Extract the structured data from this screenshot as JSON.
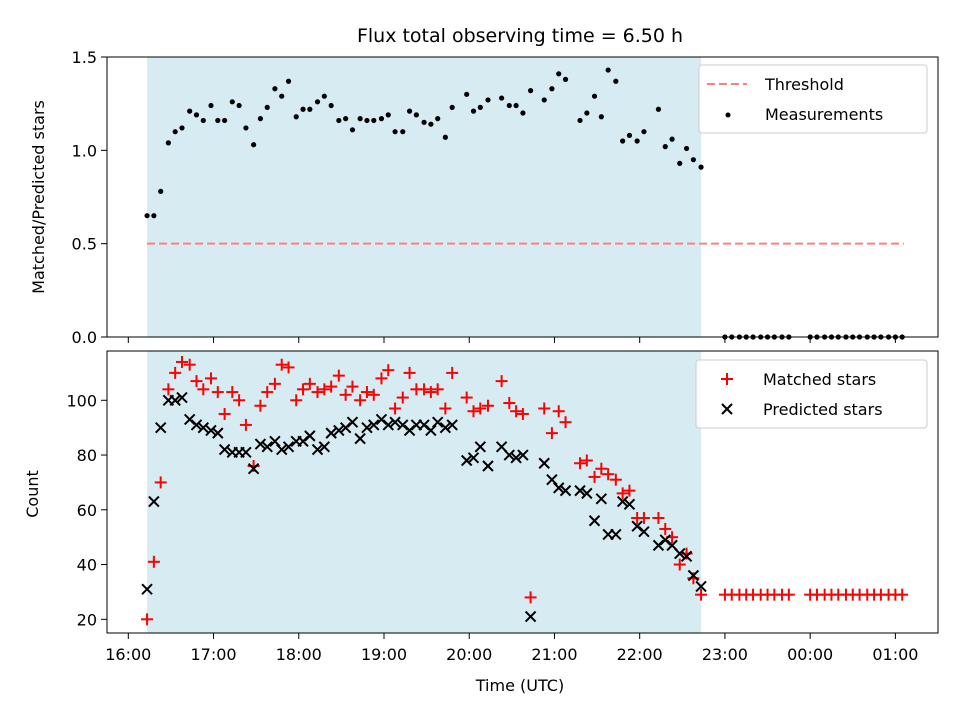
{
  "chart_data": [
    {
      "type": "scatter",
      "title": "Flux total observing time = 6.50 h",
      "ylabel": "Matched/Predicted stars",
      "ylim": [
        0,
        1.5
      ],
      "yticks": [
        0.0,
        0.5,
        1.0,
        1.5
      ],
      "ytick_labels": [
        "0.0",
        "0.5",
        "1.0",
        "1.5"
      ],
      "xlim_hours": [
        15.75,
        25.5
      ],
      "legend_position": "top-right",
      "shaded_region_hours": [
        16.22,
        22.72
      ],
      "shade_color": "#add8e6",
      "threshold": {
        "name": "Threshold",
        "value": 0.5,
        "x_hours": [
          16.22,
          25.1
        ],
        "color": "#ff7f7f"
      },
      "series": [
        {
          "name": "Measurements",
          "color": "#000000",
          "x_hours": [
            16.22,
            16.3,
            16.38,
            16.47,
            16.55,
            16.63,
            16.72,
            16.8,
            16.88,
            16.97,
            17.05,
            17.13,
            17.22,
            17.3,
            17.38,
            17.47,
            17.55,
            17.63,
            17.72,
            17.8,
            17.88,
            17.97,
            18.05,
            18.13,
            18.22,
            18.3,
            18.38,
            18.47,
            18.55,
            18.63,
            18.72,
            18.8,
            18.88,
            18.97,
            19.05,
            19.13,
            19.22,
            19.3,
            19.38,
            19.47,
            19.55,
            19.63,
            19.72,
            19.8,
            19.97,
            20.05,
            20.13,
            20.22,
            20.38,
            20.47,
            20.55,
            20.63,
            20.72,
            20.88,
            20.97,
            21.05,
            21.13,
            21.3,
            21.38,
            21.47,
            21.55,
            21.63,
            21.72,
            21.8,
            21.88,
            21.97,
            22.05,
            22.22,
            22.3,
            22.38,
            22.47,
            22.55,
            22.63,
            22.72,
            23.0,
            23.08,
            23.17,
            23.25,
            23.33,
            23.42,
            23.5,
            23.58,
            23.67,
            23.75,
            24.0,
            24.08,
            24.17,
            24.25,
            24.33,
            24.42,
            24.5,
            24.58,
            24.67,
            24.75,
            24.83,
            24.92,
            25.0,
            25.08
          ],
          "y": [
            0.65,
            0.65,
            0.78,
            1.04,
            1.1,
            1.12,
            1.21,
            1.19,
            1.16,
            1.24,
            1.16,
            1.16,
            1.26,
            1.24,
            1.12,
            1.03,
            1.17,
            1.23,
            1.33,
            1.29,
            1.37,
            1.18,
            1.22,
            1.22,
            1.26,
            1.29,
            1.24,
            1.16,
            1.17,
            1.11,
            1.17,
            1.16,
            1.16,
            1.17,
            1.19,
            1.1,
            1.1,
            1.21,
            1.19,
            1.15,
            1.14,
            1.17,
            1.07,
            1.23,
            1.3,
            1.21,
            1.23,
            1.27,
            1.28,
            1.24,
            1.24,
            1.2,
            1.32,
            1.27,
            1.33,
            1.41,
            1.38,
            1.16,
            1.2,
            1.29,
            1.18,
            1.43,
            1.37,
            1.05,
            1.08,
            1.05,
            1.1,
            1.22,
            1.02,
            1.06,
            0.93,
            1.01,
            0.95,
            0.91,
            0,
            0,
            0,
            0,
            0,
            0,
            0,
            0,
            0,
            0,
            0,
            0,
            0,
            0,
            0,
            0,
            0,
            0,
            0,
            0,
            0,
            0,
            0,
            0
          ]
        }
      ]
    },
    {
      "type": "scatter",
      "xlabel": "Time (UTC)",
      "ylabel": "Count",
      "ylim": [
        15,
        118
      ],
      "yticks": [
        20,
        40,
        60,
        80,
        100
      ],
      "xlim_hours": [
        15.75,
        25.5
      ],
      "xticks_hours": [
        16,
        17,
        18,
        19,
        20,
        21,
        22,
        23,
        24,
        25
      ],
      "xtick_labels": [
        "16:00",
        "17:00",
        "18:00",
        "19:00",
        "20:00",
        "21:00",
        "22:00",
        "23:00",
        "00:00",
        "01:00"
      ],
      "legend_position": "top-right",
      "shaded_region_hours": [
        16.22,
        22.72
      ],
      "series": [
        {
          "name": "Matched stars",
          "marker": "+",
          "color": "#ff0000",
          "x_hours": [
            16.22,
            16.3,
            16.38,
            16.47,
            16.55,
            16.63,
            16.72,
            16.8,
            16.88,
            16.97,
            17.05,
            17.13,
            17.22,
            17.3,
            17.38,
            17.47,
            17.55,
            17.63,
            17.72,
            17.8,
            17.88,
            17.97,
            18.05,
            18.13,
            18.22,
            18.3,
            18.38,
            18.47,
            18.55,
            18.63,
            18.72,
            18.8,
            18.88,
            18.97,
            19.05,
            19.13,
            19.22,
            19.3,
            19.38,
            19.47,
            19.55,
            19.63,
            19.72,
            19.8,
            19.97,
            20.05,
            20.13,
            20.22,
            20.38,
            20.47,
            20.55,
            20.63,
            20.72,
            20.88,
            20.97,
            21.05,
            21.13,
            21.3,
            21.38,
            21.47,
            21.55,
            21.63,
            21.72,
            21.8,
            21.88,
            21.97,
            22.05,
            22.22,
            22.3,
            22.38,
            22.47,
            22.55,
            22.63,
            22.72,
            23.0,
            23.08,
            23.17,
            23.25,
            23.33,
            23.42,
            23.5,
            23.58,
            23.67,
            23.75,
            24.0,
            24.08,
            24.17,
            24.25,
            24.33,
            24.42,
            24.5,
            24.58,
            24.67,
            24.75,
            24.83,
            24.92,
            25.0,
            25.08
          ],
          "y": [
            20,
            41,
            70,
            104,
            110,
            114,
            113,
            107,
            104,
            108,
            103,
            95,
            103,
            100,
            91,
            76,
            98,
            103,
            106,
            113,
            112,
            100,
            104,
            106,
            103,
            104,
            105,
            109,
            102,
            105,
            100,
            103,
            102,
            108,
            111,
            97,
            101,
            110,
            104,
            104,
            103,
            104,
            97,
            110,
            101,
            96,
            97,
            98,
            107,
            99,
            96,
            95,
            28,
            97,
            88,
            96,
            92,
            77,
            78,
            72,
            75,
            73,
            71,
            66,
            67,
            57,
            57,
            57,
            53,
            50,
            40,
            44,
            35,
            29,
            29,
            29,
            29,
            29,
            29,
            29,
            29,
            29,
            29,
            29,
            29,
            29,
            29,
            29,
            29,
            29,
            29,
            29,
            29,
            29,
            29,
            29,
            29,
            29
          ]
        },
        {
          "name": "Predicted stars",
          "marker": "x",
          "color": "#000000",
          "x_hours": [
            16.22,
            16.3,
            16.38,
            16.47,
            16.55,
            16.63,
            16.72,
            16.8,
            16.88,
            16.97,
            17.05,
            17.13,
            17.22,
            17.3,
            17.38,
            17.47,
            17.55,
            17.63,
            17.72,
            17.8,
            17.88,
            17.97,
            18.05,
            18.13,
            18.22,
            18.3,
            18.38,
            18.47,
            18.55,
            18.63,
            18.72,
            18.8,
            18.88,
            18.97,
            19.05,
            19.13,
            19.22,
            19.3,
            19.38,
            19.47,
            19.55,
            19.63,
            19.72,
            19.8,
            19.97,
            20.05,
            20.13,
            20.22,
            20.38,
            20.47,
            20.55,
            20.63,
            20.72,
            20.88,
            20.97,
            21.05,
            21.13,
            21.3,
            21.38,
            21.47,
            21.55,
            21.63,
            21.72,
            21.8,
            21.88,
            21.97,
            22.05,
            22.22,
            22.3,
            22.38,
            22.47,
            22.55,
            22.63,
            22.72
          ],
          "y": [
            31,
            63,
            90,
            100,
            100,
            101,
            93,
            91,
            90,
            89,
            88,
            82,
            81,
            81,
            81,
            75,
            84,
            83,
            85,
            82,
            83,
            85,
            85,
            87,
            82,
            83,
            88,
            89,
            90,
            92,
            86,
            90,
            91,
            93,
            91,
            92,
            91,
            89,
            91,
            91,
            89,
            92,
            90,
            91,
            78,
            79,
            83,
            76,
            83,
            80,
            79,
            80,
            21,
            77,
            71,
            68,
            67,
            67,
            66,
            56,
            64,
            51,
            51,
            63,
            62,
            54,
            52,
            47,
            49,
            47,
            44,
            43,
            36,
            32
          ]
        }
      ]
    }
  ]
}
